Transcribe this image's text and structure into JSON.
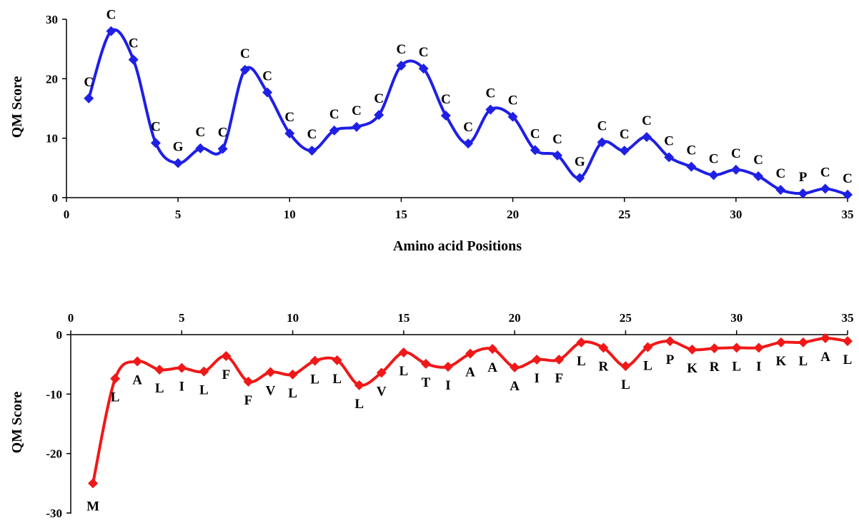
{
  "chart_data": [
    {
      "type": "line",
      "xlabel": "Amino acid Positions",
      "ylabel": "QM Score",
      "xlim": [
        0,
        35
      ],
      "ylim": [
        0,
        30
      ],
      "x_ticks": [
        "0",
        "5",
        "10",
        "15",
        "20",
        "25",
        "30",
        "35"
      ],
      "y_ticks": [
        "0",
        "10",
        "20",
        "30"
      ],
      "grid": false,
      "line_style": "smooth",
      "series": [
        {
          "color": "#1f1fe6",
          "marker": "diamond",
          "x": [
            1,
            2,
            3,
            4,
            5,
            6,
            7,
            8,
            9,
            10,
            11,
            12,
            13,
            14,
            15,
            16,
            17,
            18,
            19,
            20,
            21,
            22,
            23,
            24,
            25,
            26,
            27,
            28,
            29,
            30,
            31,
            32,
            33,
            34,
            35
          ],
          "values": [
            16.7,
            28.0,
            23.2,
            9.2,
            5.8,
            8.3,
            8.2,
            21.5,
            17.7,
            10.8,
            7.9,
            11.3,
            11.9,
            13.9,
            22.2,
            21.7,
            13.8,
            9.1,
            14.8,
            13.6,
            8.0,
            7.1,
            3.3,
            9.3,
            7.9,
            10.2,
            6.8,
            5.2,
            3.8,
            4.7,
            3.6,
            1.3,
            0.7,
            1.5,
            0.5
          ],
          "point_labels": [
            "C",
            "C",
            "C",
            "C",
            "G",
            "C",
            "C",
            "C",
            "C",
            "C",
            "C",
            "C",
            "C",
            "C",
            "C",
            "C",
            "C",
            "C",
            "C",
            "C",
            "C",
            "C",
            "G",
            "C",
            "C",
            "C",
            "C",
            "C",
            "C",
            "C",
            "C",
            "C",
            "P",
            "C",
            "C"
          ]
        }
      ]
    },
    {
      "type": "line",
      "xlabel": "",
      "ylabel": "QM Score",
      "xlim": [
        0,
        35
      ],
      "ylim": [
        -30,
        0
      ],
      "x_axis_position": "top",
      "x_ticks": [
        "0",
        "5",
        "10",
        "15",
        "20",
        "25",
        "30",
        "35"
      ],
      "y_ticks": [
        "0",
        "-10",
        "-20",
        "-30"
      ],
      "grid": false,
      "line_style": "smooth",
      "series": [
        {
          "color": "#f01818",
          "marker": "diamond",
          "x": [
            1,
            2,
            3,
            4,
            5,
            6,
            7,
            8,
            9,
            10,
            11,
            12,
            13,
            14,
            15,
            16,
            17,
            18,
            19,
            20,
            21,
            22,
            23,
            24,
            25,
            26,
            27,
            28,
            29,
            30,
            31,
            32,
            33,
            34,
            35
          ],
          "values": [
            -25.0,
            -7.4,
            -4.5,
            -5.9,
            -5.6,
            -6.2,
            -3.6,
            -7.9,
            -6.3,
            -6.7,
            -4.4,
            -4.3,
            -8.5,
            -6.4,
            -3.0,
            -4.9,
            -5.4,
            -3.2,
            -2.4,
            -5.5,
            -4.2,
            -4.2,
            -1.3,
            -2.2,
            -5.3,
            -2.1,
            -1.1,
            -2.5,
            -2.3,
            -2.2,
            -2.2,
            -1.3,
            -1.3,
            -0.6,
            -1.1
          ],
          "point_labels": [
            "M",
            "L",
            "A",
            "L",
            "I",
            "L",
            "F",
            "F",
            "V",
            "L",
            "L",
            "L",
            "L",
            "V",
            "L",
            "T",
            "I",
            "A",
            "A",
            "A",
            "I",
            "F",
            "L",
            "R",
            "L",
            "L",
            "P",
            "K",
            "R",
            "L",
            "I",
            "K",
            "L",
            "A",
            "L"
          ]
        }
      ]
    }
  ]
}
